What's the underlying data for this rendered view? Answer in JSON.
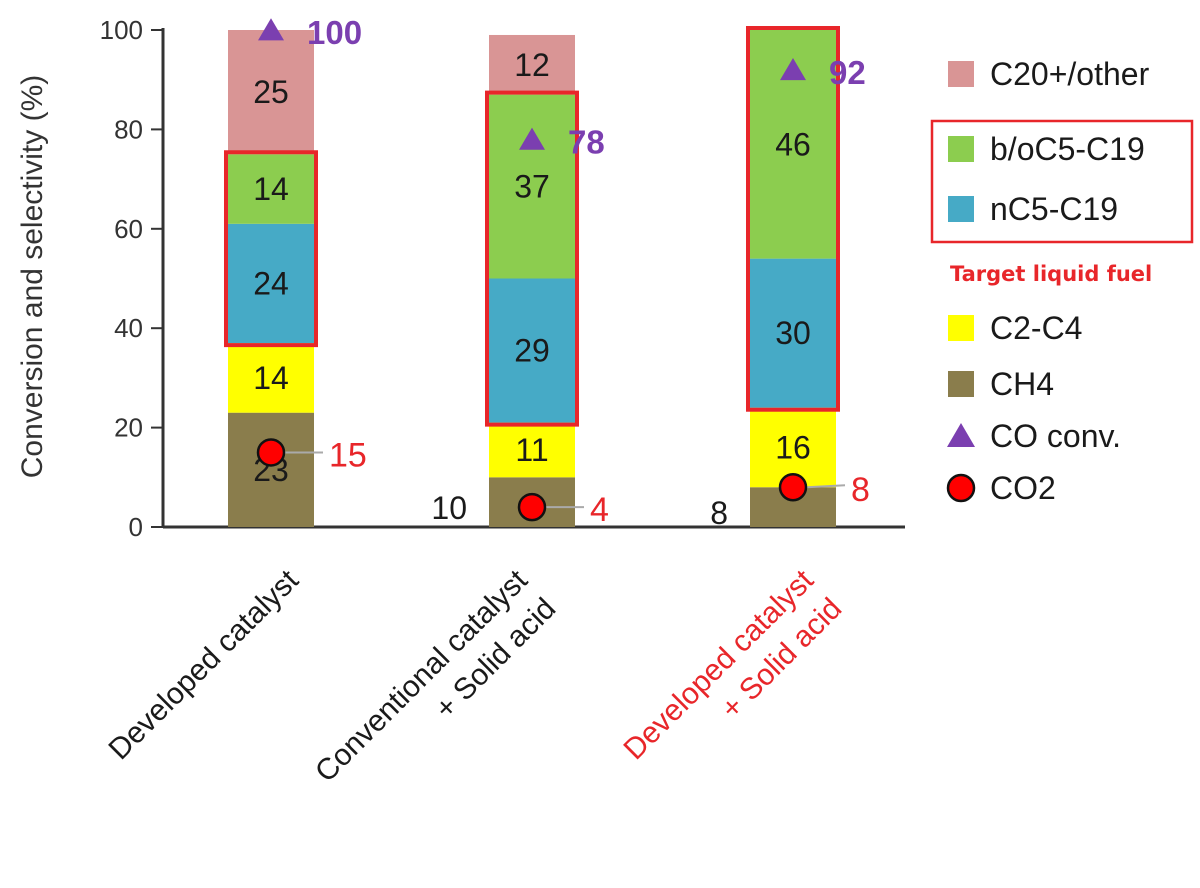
{
  "chart_data": {
    "type": "bar",
    "stacked": true,
    "ylabel": "Conversion and selectivity (%)",
    "ylim": [
      0,
      100
    ],
    "yticks": [
      "0",
      "20",
      "40",
      "60",
      "80",
      "100"
    ],
    "grid": false,
    "legend_position": "right",
    "categories": [
      {
        "lines": [
          "Developed catalyst"
        ],
        "color": "#1a1a1a"
      },
      {
        "lines": [
          "Conventional catalyst",
          "+ Solid acid"
        ],
        "color": "#1a1a1a"
      },
      {
        "lines": [
          "Developed catalyst",
          "+ Solid acid"
        ],
        "color": "#e8262a"
      }
    ],
    "series": [
      {
        "name": "CH4",
        "color": "#8a7d4c",
        "values": [
          23,
          10,
          8
        ],
        "labels": [
          "23",
          "10",
          "8"
        ],
        "label_outside": [
          false,
          true,
          true
        ]
      },
      {
        "name": "C2-C4",
        "color": "#ffff00",
        "values": [
          14,
          11,
          16
        ],
        "labels": [
          "14",
          "11",
          "16"
        ],
        "label_outside": [
          false,
          false,
          false
        ]
      },
      {
        "name": "nC5-C19",
        "color": "#46aac6",
        "values": [
          24,
          29,
          30
        ],
        "labels": [
          "24",
          "29",
          "30"
        ],
        "label_outside": [
          false,
          false,
          false
        ]
      },
      {
        "name": "b/oC5-C19",
        "color": "#8ccd4f",
        "values": [
          14,
          37,
          46
        ],
        "labels": [
          "14",
          "37",
          "46"
        ],
        "label_outside": [
          false,
          false,
          false
        ]
      },
      {
        "name": "C20+/other",
        "color": "#d99595",
        "values": [
          25,
          12,
          0
        ],
        "labels": [
          "25",
          "12",
          ""
        ],
        "label_outside": [
          false,
          false,
          false
        ]
      }
    ],
    "co_conversion": {
      "name": "CO conv.",
      "color": "#7b3fb0",
      "values": [
        100,
        78,
        92
      ],
      "labels": [
        "100",
        "78",
        "92"
      ]
    },
    "co2": {
      "name": "CO2",
      "color": "#ff0000",
      "values": [
        15,
        4,
        8
      ],
      "labels": [
        "15",
        "4",
        "8"
      ],
      "label_color": "#e8262a"
    },
    "target_box_color": "#e8262a",
    "legend": {
      "items": [
        {
          "name": "C20+/other",
          "color": "#d99595",
          "marker": "square"
        },
        {
          "name": "b/oC5-C19",
          "color": "#8ccd4f",
          "marker": "square",
          "boxed": true
        },
        {
          "name": "nC5-C19",
          "color": "#46aac6",
          "marker": "square",
          "boxed": true
        },
        {
          "name": "C2-C4",
          "color": "#ffff00",
          "marker": "square"
        },
        {
          "name": "CH4",
          "color": "#8a7d4c",
          "marker": "square"
        },
        {
          "name": "CO conv.",
          "color": "#7b3fb0",
          "marker": "triangle"
        },
        {
          "name": "CO2",
          "color": "#ff0000",
          "marker": "circle"
        }
      ],
      "target_note": "Target liquid fuel",
      "target_note_color": "#e8262a"
    }
  }
}
